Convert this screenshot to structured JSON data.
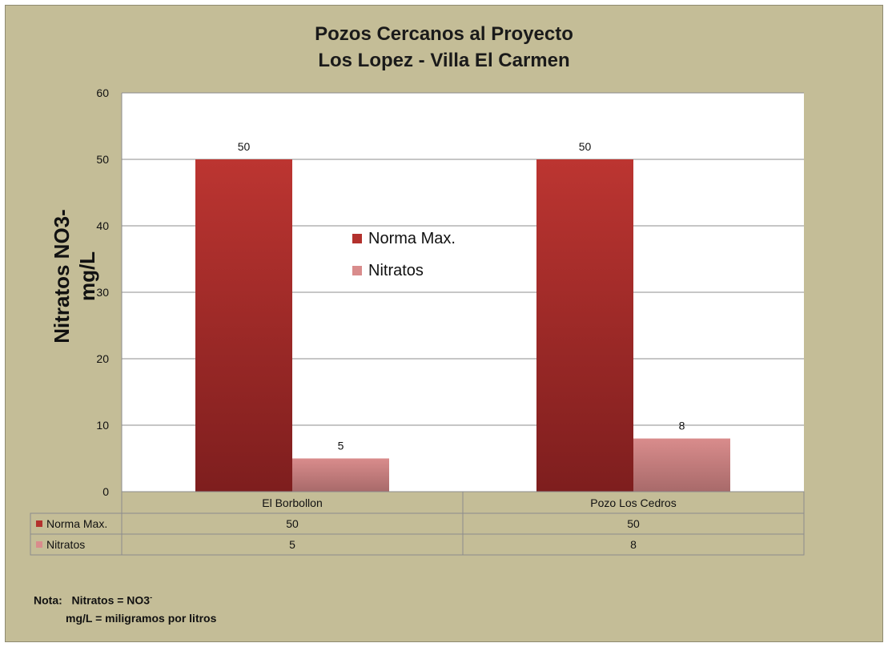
{
  "chart_data": {
    "type": "bar",
    "title_line1": "Pozos Cercanos al Proyecto",
    "title_line2": "Los Lopez - Villa El Carmen",
    "ylabel_line1": "Nitratos NO3-",
    "ylabel_line2": "mg/L",
    "xlabel": "",
    "ylim": [
      0,
      60
    ],
    "yticks": [
      0,
      10,
      20,
      30,
      40,
      50,
      60
    ],
    "grid": true,
    "legend_position": "center",
    "categories": [
      "El Borbollon",
      "Pozo Los Cedros"
    ],
    "series": [
      {
        "name": "Norma Max.",
        "values": [
          50,
          50
        ],
        "color": "#b3312d"
      },
      {
        "name": "Nitratos",
        "values": [
          5,
          8
        ],
        "color": "#d98c8c"
      }
    ]
  },
  "note": {
    "label": "Nota:",
    "line1_text": "Nitratos = NO3",
    "line1_sup": "-",
    "line2_text": "mg/L = miligramos por litros"
  }
}
